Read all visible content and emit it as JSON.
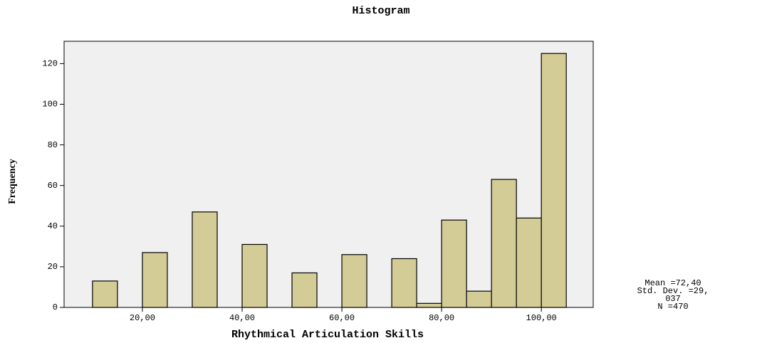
{
  "chart_data": {
    "type": "histogram",
    "title": "Histogram",
    "x_label": "Rhythmical Articulation Skills",
    "y_label": "Frequency",
    "bins": [
      10,
      15,
      20,
      25,
      30,
      35,
      40,
      45,
      50,
      55,
      60,
      65,
      70,
      75,
      80,
      85,
      90,
      95,
      100,
      105
    ],
    "values": [
      13,
      0,
      27,
      0,
      47,
      0,
      31,
      0,
      17,
      0,
      26,
      0,
      24,
      2,
      43,
      8,
      63,
      44,
      125
    ],
    "color": "#d4cc96",
    "xlim": [
      4.3,
      110.4
    ],
    "xticks": [
      {
        "value": 20,
        "label": "20,00"
      },
      {
        "value": 40,
        "label": "40,00"
      },
      {
        "value": 60,
        "label": "60,00"
      },
      {
        "value": 80,
        "label": "80,00"
      },
      {
        "value": 100,
        "label": "100,00"
      }
    ],
    "ylim": [
      0,
      131
    ],
    "yticks": [
      0,
      20,
      40,
      60,
      80,
      100,
      120
    ],
    "stats": [
      "Mean =72,40",
      "Std. Dev. =29,",
      "037",
      "N =470"
    ]
  }
}
